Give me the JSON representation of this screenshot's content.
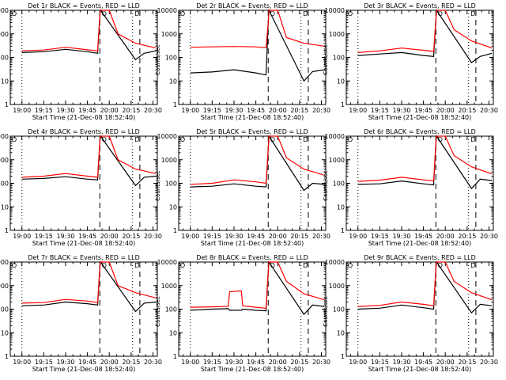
{
  "page": {
    "background": "#ffffff"
  },
  "colors": {
    "events": "#000000",
    "lld": "#ff0000",
    "axes": "#000000"
  },
  "shared": {
    "xlabel": "Start Time (21-Dec-08 18:52:40)",
    "ylabel": "Counts/sec",
    "ytick_labels": [
      "1",
      "10",
      "100",
      "1000",
      "10000"
    ],
    "markers": {
      "circle": "O",
      "square": "D"
    }
  },
  "chart_data": [
    {
      "type": "line",
      "title": "Det 1r BLACK = Events, RED = LLD",
      "x_ticks": [
        "19:00",
        "19:15",
        "19:30",
        "19:45",
        "20:00",
        "20:15",
        "20:30"
      ],
      "y_scale": "log",
      "ylim": [
        1,
        10000
      ],
      "series": [
        {
          "name": "Events",
          "points": [
            [
              0,
              160
            ],
            [
              15,
              175
            ],
            [
              30,
              220
            ],
            [
              45,
              175
            ],
            [
              52,
              150
            ],
            [
              53.5,
              6000
            ],
            [
              54,
              10000
            ],
            [
              78,
              80
            ],
            [
              84,
              150
            ],
            [
              92,
              190
            ]
          ]
        },
        {
          "name": "LLD",
          "points": [
            [
              0,
              190
            ],
            [
              15,
              205
            ],
            [
              30,
              270
            ],
            [
              45,
              210
            ],
            [
              52,
              190
            ],
            [
              53.5,
              6000
            ],
            [
              54,
              10000
            ],
            [
              60,
              10000
            ],
            [
              66,
              1000
            ],
            [
              78,
              400
            ],
            [
              92,
              250
            ]
          ]
        }
      ]
    },
    {
      "type": "line",
      "title": "Det 2r BLACK = Events, RED = LLD",
      "x_ticks": [
        "19:00",
        "19:15",
        "19:30",
        "19:45",
        "20:00",
        "20:15",
        "20:30"
      ],
      "y_scale": "log",
      "ylim": [
        1,
        10000
      ],
      "series": [
        {
          "name": "Events",
          "points": [
            [
              0,
              22
            ],
            [
              15,
              24
            ],
            [
              30,
              30
            ],
            [
              45,
              22
            ],
            [
              52,
              18
            ],
            [
              53.5,
              3000
            ],
            [
              54,
              10000
            ],
            [
              78,
              10
            ],
            [
              84,
              25
            ],
            [
              92,
              30
            ]
          ]
        },
        {
          "name": "LLD",
          "points": [
            [
              0,
              270
            ],
            [
              15,
              280
            ],
            [
              30,
              290
            ],
            [
              45,
              280
            ],
            [
              52,
              260
            ],
            [
              53.5,
              3000
            ],
            [
              54,
              10000
            ],
            [
              60,
              10000
            ],
            [
              66,
              700
            ],
            [
              78,
              400
            ],
            [
              92,
              300
            ]
          ]
        }
      ]
    },
    {
      "type": "line",
      "title": "Det 3r BLACK = Events, RED = LLD",
      "x_ticks": [
        "19:00",
        "19:15",
        "19:30",
        "19:45",
        "20:00",
        "20:15",
        "20:30"
      ],
      "y_scale": "log",
      "ylim": [
        1,
        10000
      ],
      "series": [
        {
          "name": "Events",
          "points": [
            [
              0,
              120
            ],
            [
              15,
              140
            ],
            [
              30,
              160
            ],
            [
              45,
              120
            ],
            [
              52,
              110
            ],
            [
              53.5,
              4000
            ],
            [
              54,
              10000
            ],
            [
              78,
              60
            ],
            [
              84,
              110
            ],
            [
              92,
              150
            ]
          ]
        },
        {
          "name": "LLD",
          "points": [
            [
              0,
              160
            ],
            [
              15,
              190
            ],
            [
              30,
              250
            ],
            [
              45,
              200
            ],
            [
              52,
              180
            ],
            [
              53.5,
              4000
            ],
            [
              54,
              10000
            ],
            [
              60,
              10000
            ],
            [
              66,
              1500
            ],
            [
              78,
              500
            ],
            [
              92,
              250
            ]
          ]
        }
      ]
    },
    {
      "type": "line",
      "title": "Det 4r BLACK = Events, RED = LLD",
      "x_ticks": [
        "19:00",
        "19:15",
        "19:30",
        "19:45",
        "20:00",
        "20:15",
        "20:30"
      ],
      "y_scale": "log",
      "ylim": [
        1,
        10000
      ],
      "series": [
        {
          "name": "Events",
          "points": [
            [
              0,
              150
            ],
            [
              15,
              160
            ],
            [
              30,
              190
            ],
            [
              45,
              150
            ],
            [
              52,
              140
            ],
            [
              53.5,
              6000
            ],
            [
              54,
              10000
            ],
            [
              78,
              80
            ],
            [
              84,
              180
            ],
            [
              92,
              200
            ]
          ]
        },
        {
          "name": "LLD",
          "points": [
            [
              0,
              180
            ],
            [
              15,
              200
            ],
            [
              30,
              260
            ],
            [
              45,
              200
            ],
            [
              52,
              180
            ],
            [
              53.5,
              6000
            ],
            [
              54,
              10000
            ],
            [
              60,
              10000
            ],
            [
              66,
              1000
            ],
            [
              78,
              400
            ],
            [
              92,
              260
            ]
          ]
        }
      ]
    },
    {
      "type": "line",
      "title": "Det 5r BLACK = Events, RED = LLD",
      "x_ticks": [
        "19:00",
        "19:15",
        "19:30",
        "19:45",
        "20:00",
        "20:15",
        "20:30"
      ],
      "y_scale": "log",
      "ylim": [
        1,
        10000
      ],
      "series": [
        {
          "name": "Events",
          "points": [
            [
              0,
              70
            ],
            [
              15,
              75
            ],
            [
              30,
              95
            ],
            [
              45,
              75
            ],
            [
              52,
              70
            ],
            [
              53.5,
              3000
            ],
            [
              54,
              10000
            ],
            [
              78,
              50
            ],
            [
              84,
              100
            ],
            [
              92,
              90
            ]
          ]
        },
        {
          "name": "LLD",
          "points": [
            [
              0,
              90
            ],
            [
              15,
              100
            ],
            [
              30,
              140
            ],
            [
              45,
              115
            ],
            [
              52,
              100
            ],
            [
              53.5,
              3000
            ],
            [
              54,
              10000
            ],
            [
              60,
              10000
            ],
            [
              66,
              1200
            ],
            [
              78,
              400
            ],
            [
              92,
              220
            ]
          ]
        }
      ]
    },
    {
      "type": "line",
      "title": "Det 6r BLACK = Events, RED = LLD",
      "x_ticks": [
        "19:00",
        "19:15",
        "19:30",
        "19:45",
        "20:00",
        "20:15",
        "20:30"
      ],
      "y_scale": "log",
      "ylim": [
        1,
        10000
      ],
      "series": [
        {
          "name": "Events",
          "points": [
            [
              0,
              90
            ],
            [
              15,
              95
            ],
            [
              30,
              125
            ],
            [
              45,
              95
            ],
            [
              52,
              85
            ],
            [
              53.5,
              5000
            ],
            [
              54,
              10000
            ],
            [
              78,
              60
            ],
            [
              84,
              150
            ],
            [
              92,
              130
            ]
          ]
        },
        {
          "name": "LLD",
          "points": [
            [
              0,
              120
            ],
            [
              15,
              135
            ],
            [
              30,
              180
            ],
            [
              45,
              140
            ],
            [
              52,
              125
            ],
            [
              53.5,
              5000
            ],
            [
              54,
              10000
            ],
            [
              60,
              10000
            ],
            [
              66,
              1500
            ],
            [
              78,
              500
            ],
            [
              92,
              250
            ]
          ]
        }
      ]
    },
    {
      "type": "line",
      "title": "Det 7r BLACK = Events, RED = LLD",
      "x_ticks": [
        "19:00",
        "19:15",
        "19:30",
        "19:45",
        "20:00",
        "20:15",
        "20:30"
      ],
      "y_scale": "log",
      "ylim": [
        1,
        10000
      ],
      "series": [
        {
          "name": "Events",
          "points": [
            [
              0,
              140
            ],
            [
              15,
              150
            ],
            [
              30,
              200
            ],
            [
              45,
              170
            ],
            [
              52,
              150
            ],
            [
              53.5,
              6000
            ],
            [
              54,
              10000
            ],
            [
              78,
              80
            ],
            [
              84,
              180
            ],
            [
              92,
              200
            ]
          ]
        },
        {
          "name": "LLD",
          "points": [
            [
              0,
              180
            ],
            [
              15,
              190
            ],
            [
              30,
              260
            ],
            [
              45,
              220
            ],
            [
              52,
              190
            ],
            [
              53.5,
              6000
            ],
            [
              54,
              10000
            ],
            [
              60,
              10000
            ],
            [
              66,
              1000
            ],
            [
              78,
              500
            ],
            [
              92,
              300
            ]
          ]
        }
      ]
    },
    {
      "type": "line",
      "title": "Det 8r BLACK = Events, RED = LLD",
      "x_ticks": [
        "19:00",
        "19:15",
        "19:30",
        "19:45",
        "20:00",
        "20:15",
        "20:30"
      ],
      "y_scale": "log",
      "ylim": [
        1,
        10000
      ],
      "series": [
        {
          "name": "Events",
          "points": [
            [
              0,
              90
            ],
            [
              15,
              100
            ],
            [
              26,
              105
            ],
            [
              27,
              90
            ],
            [
              35,
              90
            ],
            [
              36,
              100
            ],
            [
              45,
              90
            ],
            [
              52,
              85
            ],
            [
              53.5,
              4000
            ],
            [
              54,
              10000
            ],
            [
              78,
              60
            ],
            [
              84,
              150
            ],
            [
              92,
              130
            ]
          ]
        },
        {
          "name": "LLD",
          "points": [
            [
              0,
              120
            ],
            [
              15,
              125
            ],
            [
              26,
              130
            ],
            [
              27,
              550
            ],
            [
              35,
              600
            ],
            [
              36,
              140
            ],
            [
              45,
              120
            ],
            [
              52,
              110
            ],
            [
              53.5,
              4000
            ],
            [
              54,
              10000
            ],
            [
              60,
              10000
            ],
            [
              66,
              1500
            ],
            [
              78,
              450
            ],
            [
              92,
              250
            ]
          ]
        }
      ]
    },
    {
      "type": "line",
      "title": "Det 9r BLACK = Events, RED = LLD",
      "x_ticks": [
        "19:00",
        "19:15",
        "19:30",
        "19:45",
        "20:00",
        "20:15",
        "20:30"
      ],
      "y_scale": "log",
      "ylim": [
        1,
        10000
      ],
      "series": [
        {
          "name": "Events",
          "points": [
            [
              0,
              100
            ],
            [
              15,
              110
            ],
            [
              30,
              150
            ],
            [
              45,
              115
            ],
            [
              52,
              100
            ],
            [
              53.5,
              5000
            ],
            [
              54,
              10000
            ],
            [
              78,
              70
            ],
            [
              84,
              160
            ],
            [
              92,
              140
            ]
          ]
        },
        {
          "name": "LLD",
          "points": [
            [
              0,
              130
            ],
            [
              15,
              145
            ],
            [
              30,
              200
            ],
            [
              45,
              160
            ],
            [
              52,
              140
            ],
            [
              53.5,
              5000
            ],
            [
              54,
              10000
            ],
            [
              60,
              10000
            ],
            [
              66,
              1500
            ],
            [
              78,
              500
            ],
            [
              92,
              250
            ]
          ]
        }
      ]
    }
  ]
}
